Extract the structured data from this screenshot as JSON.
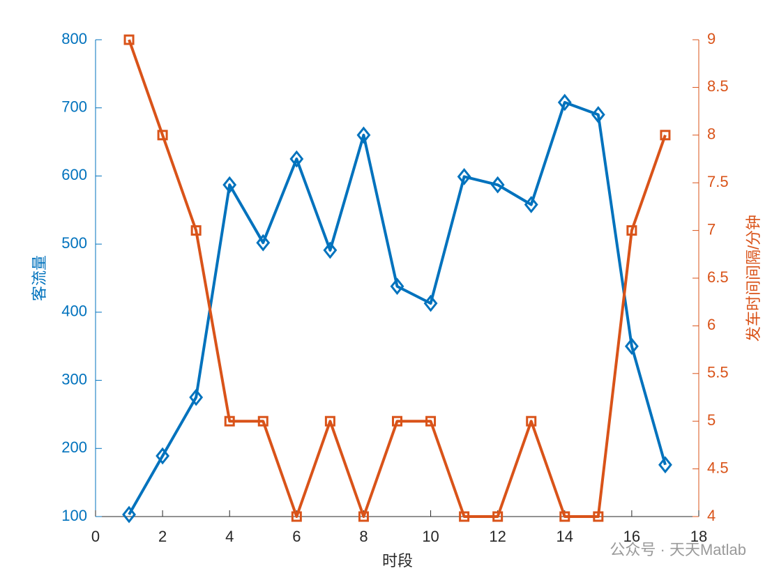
{
  "chart_data": {
    "type": "line",
    "xlabel": "时段",
    "ylabel": "客流量",
    "y2label": "发车时间间隔/分钟",
    "x": [
      1,
      2,
      3,
      4,
      5,
      6,
      7,
      8,
      9,
      10,
      11,
      12,
      13,
      14,
      15,
      16,
      17
    ],
    "series": [
      {
        "name": "客流量",
        "color": "#0072BD",
        "marker": "diamond",
        "axis": "y",
        "values": [
          103,
          189,
          275,
          587,
          502,
          625,
          491,
          660,
          438,
          413,
          599,
          587,
          558,
          708,
          690,
          350,
          176
        ]
      },
      {
        "name": "发车时间间隔/分钟",
        "color": "#D95319",
        "marker": "square",
        "axis": "y2",
        "values": [
          9,
          8,
          7,
          5,
          5,
          4,
          5,
          4,
          5,
          5,
          4,
          4,
          5,
          4,
          4,
          7,
          8
        ]
      }
    ],
    "xlim": [
      0,
      18
    ],
    "xticks": [
      0,
      2,
      4,
      6,
      8,
      10,
      12,
      14,
      16,
      18
    ],
    "ylim": [
      100,
      800
    ],
    "yticks": [
      100,
      200,
      300,
      400,
      500,
      600,
      700,
      800
    ],
    "y2lim": [
      4,
      9
    ],
    "y2ticks": [
      4,
      4.5,
      5,
      5.5,
      6,
      6.5,
      7,
      7.5,
      8,
      8.5,
      9
    ],
    "watermark": "公众号 · 天天Matlab"
  }
}
